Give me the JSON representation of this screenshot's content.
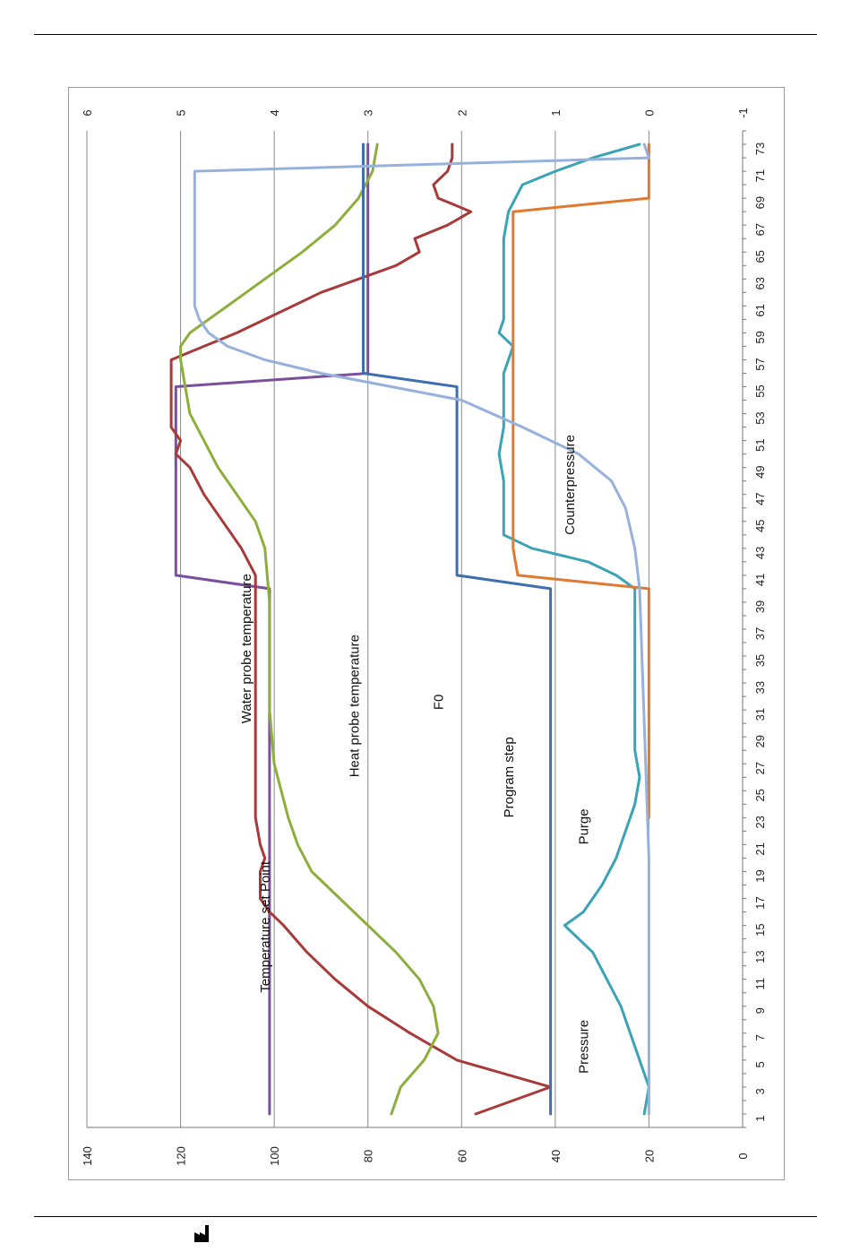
{
  "chart_data": {
    "type": "line",
    "orientation": "rotated-90-ccw",
    "x": {
      "ticks": [
        1,
        3,
        5,
        7,
        9,
        11,
        13,
        15,
        17,
        19,
        21,
        23,
        25,
        27,
        29,
        31,
        33,
        35,
        37,
        39,
        41,
        43,
        45,
        47,
        49,
        51,
        53,
        55,
        57,
        59,
        61,
        63,
        65,
        67,
        69,
        71,
        73
      ],
      "range": [
        0,
        74
      ]
    },
    "y_primary": {
      "ticks": [
        0,
        20,
        40,
        60,
        80,
        100,
        120,
        140
      ],
      "range": [
        0,
        140
      ]
    },
    "y_secondary": {
      "ticks": [
        -1,
        0,
        1,
        2,
        3,
        4,
        5,
        6
      ],
      "range": [
        -1,
        6
      ]
    },
    "grid": "horizontal major gridlines",
    "series": [
      {
        "name": "Temperature set Point",
        "color": "#7b4f9d",
        "label_pos": [
          10,
          101
        ],
        "points": [
          [
            1,
            101
          ],
          [
            40,
            101
          ],
          [
            41,
            121
          ],
          [
            55,
            121
          ],
          [
            56,
            80
          ],
          [
            73,
            80
          ]
        ]
      },
      {
        "name": "Water probe temperature",
        "color": "#a83a3a",
        "label_pos": [
          30,
          105
        ],
        "points": [
          [
            1,
            57
          ],
          [
            3,
            41
          ],
          [
            5,
            61
          ],
          [
            7,
            71
          ],
          [
            9,
            80
          ],
          [
            11,
            87
          ],
          [
            13,
            93
          ],
          [
            15,
            98
          ],
          [
            16,
            101
          ],
          [
            17,
            103
          ],
          [
            19,
            103
          ],
          [
            20,
            102
          ],
          [
            21,
            103
          ],
          [
            23,
            104
          ],
          [
            39,
            104
          ],
          [
            41,
            104
          ],
          [
            43,
            107
          ],
          [
            45,
            111
          ],
          [
            47,
            115
          ],
          [
            49,
            118
          ],
          [
            50,
            121
          ],
          [
            51,
            120
          ],
          [
            52,
            122
          ],
          [
            53,
            122
          ],
          [
            54,
            122
          ],
          [
            55,
            122
          ],
          [
            56,
            122
          ],
          [
            57,
            122
          ],
          [
            58,
            115
          ],
          [
            59,
            108
          ],
          [
            60,
            102
          ],
          [
            61,
            96
          ],
          [
            62,
            90
          ],
          [
            63,
            82
          ],
          [
            64,
            74
          ],
          [
            65,
            69
          ],
          [
            66,
            70
          ],
          [
            67,
            63
          ],
          [
            68,
            58
          ],
          [
            69,
            65
          ],
          [
            70,
            66
          ],
          [
            71,
            63
          ],
          [
            72,
            62
          ],
          [
            73,
            62
          ]
        ]
      },
      {
        "name": "Heat probe temperature",
        "color": "#8caf3c",
        "label_pos": [
          26,
          82
        ],
        "points": [
          [
            1,
            75
          ],
          [
            3,
            73
          ],
          [
            5,
            68
          ],
          [
            7,
            65
          ],
          [
            9,
            66
          ],
          [
            11,
            69
          ],
          [
            13,
            74
          ],
          [
            15,
            80
          ],
          [
            17,
            86
          ],
          [
            19,
            92
          ],
          [
            21,
            95
          ],
          [
            23,
            97
          ],
          [
            27,
            100
          ],
          [
            31,
            101
          ],
          [
            35,
            101
          ],
          [
            39,
            101
          ],
          [
            43,
            102
          ],
          [
            45,
            104
          ],
          [
            47,
            108
          ],
          [
            49,
            112
          ],
          [
            51,
            115
          ],
          [
            53,
            118
          ],
          [
            55,
            119
          ],
          [
            57,
            120
          ],
          [
            58,
            120
          ],
          [
            59,
            118
          ],
          [
            61,
            110
          ],
          [
            63,
            102
          ],
          [
            65,
            94
          ],
          [
            67,
            87
          ],
          [
            69,
            82
          ],
          [
            71,
            79
          ],
          [
            73,
            78
          ]
        ]
      },
      {
        "name": "Program step",
        "color": "#3e6eb0",
        "label_pos": [
          23,
          49
        ],
        "points": [
          [
            1,
            41
          ],
          [
            40,
            41
          ],
          [
            41,
            61
          ],
          [
            55,
            61
          ],
          [
            56,
            81
          ],
          [
            73,
            81
          ]
        ]
      },
      {
        "name": "Purge",
        "color": "#3ba3b6",
        "label_pos": [
          21,
          33
        ],
        "points": [
          [
            1,
            21
          ],
          [
            3,
            20
          ],
          [
            5,
            22
          ],
          [
            9,
            26
          ],
          [
            13,
            32
          ],
          [
            15,
            38
          ],
          [
            16,
            34
          ],
          [
            18,
            30
          ],
          [
            20,
            27
          ],
          [
            22,
            25
          ],
          [
            24,
            23
          ],
          [
            26,
            22
          ],
          [
            28,
            23
          ],
          [
            32,
            23
          ],
          [
            36,
            23
          ],
          [
            40,
            23
          ],
          [
            41,
            27
          ],
          [
            42,
            33
          ],
          [
            43,
            45
          ],
          [
            44,
            51
          ],
          [
            46,
            51
          ],
          [
            48,
            51
          ],
          [
            50,
            52
          ],
          [
            52,
            51
          ],
          [
            54,
            51
          ],
          [
            56,
            51
          ],
          [
            57,
            50
          ],
          [
            58,
            49
          ],
          [
            59,
            52
          ],
          [
            60,
            51
          ],
          [
            62,
            51
          ],
          [
            64,
            51
          ],
          [
            66,
            51
          ],
          [
            68,
            50
          ],
          [
            70,
            47
          ],
          [
            71,
            40
          ],
          [
            72,
            32
          ],
          [
            73,
            22
          ]
        ]
      },
      {
        "name": "Counterpressure",
        "color": "#e07a30",
        "label_pos": [
          44,
          36
        ],
        "points": [
          [
            23,
            20
          ],
          [
            39,
            20
          ],
          [
            40,
            20
          ],
          [
            41,
            48
          ],
          [
            43,
            49
          ],
          [
            68,
            49
          ],
          [
            69,
            20
          ],
          [
            73,
            20
          ]
        ]
      },
      {
        "name": "Pressure",
        "color": "#96b1db",
        "label_pos": [
          4,
          33
        ],
        "points": [
          [
            1,
            20
          ],
          [
            10,
            20
          ],
          [
            20,
            20
          ],
          [
            30,
            21
          ],
          [
            40,
            22
          ],
          [
            43,
            23
          ],
          [
            46,
            25
          ],
          [
            48,
            28
          ],
          [
            50,
            35
          ],
          [
            52,
            47
          ],
          [
            54,
            60
          ],
          [
            55,
            75
          ],
          [
            56,
            90
          ],
          [
            57,
            102
          ],
          [
            58,
            110
          ],
          [
            59,
            114
          ],
          [
            60,
            116
          ],
          [
            61,
            117
          ],
          [
            62,
            117
          ],
          [
            65,
            117
          ],
          [
            70,
            117
          ],
          [
            71,
            117
          ],
          [
            72,
            20
          ],
          [
            73,
            21
          ]
        ]
      }
    ],
    "primary_secondary_note": "Primary axis 0-140 (left in rotated view, bottom labels), secondary axis -1 to 6 (top labels)"
  }
}
